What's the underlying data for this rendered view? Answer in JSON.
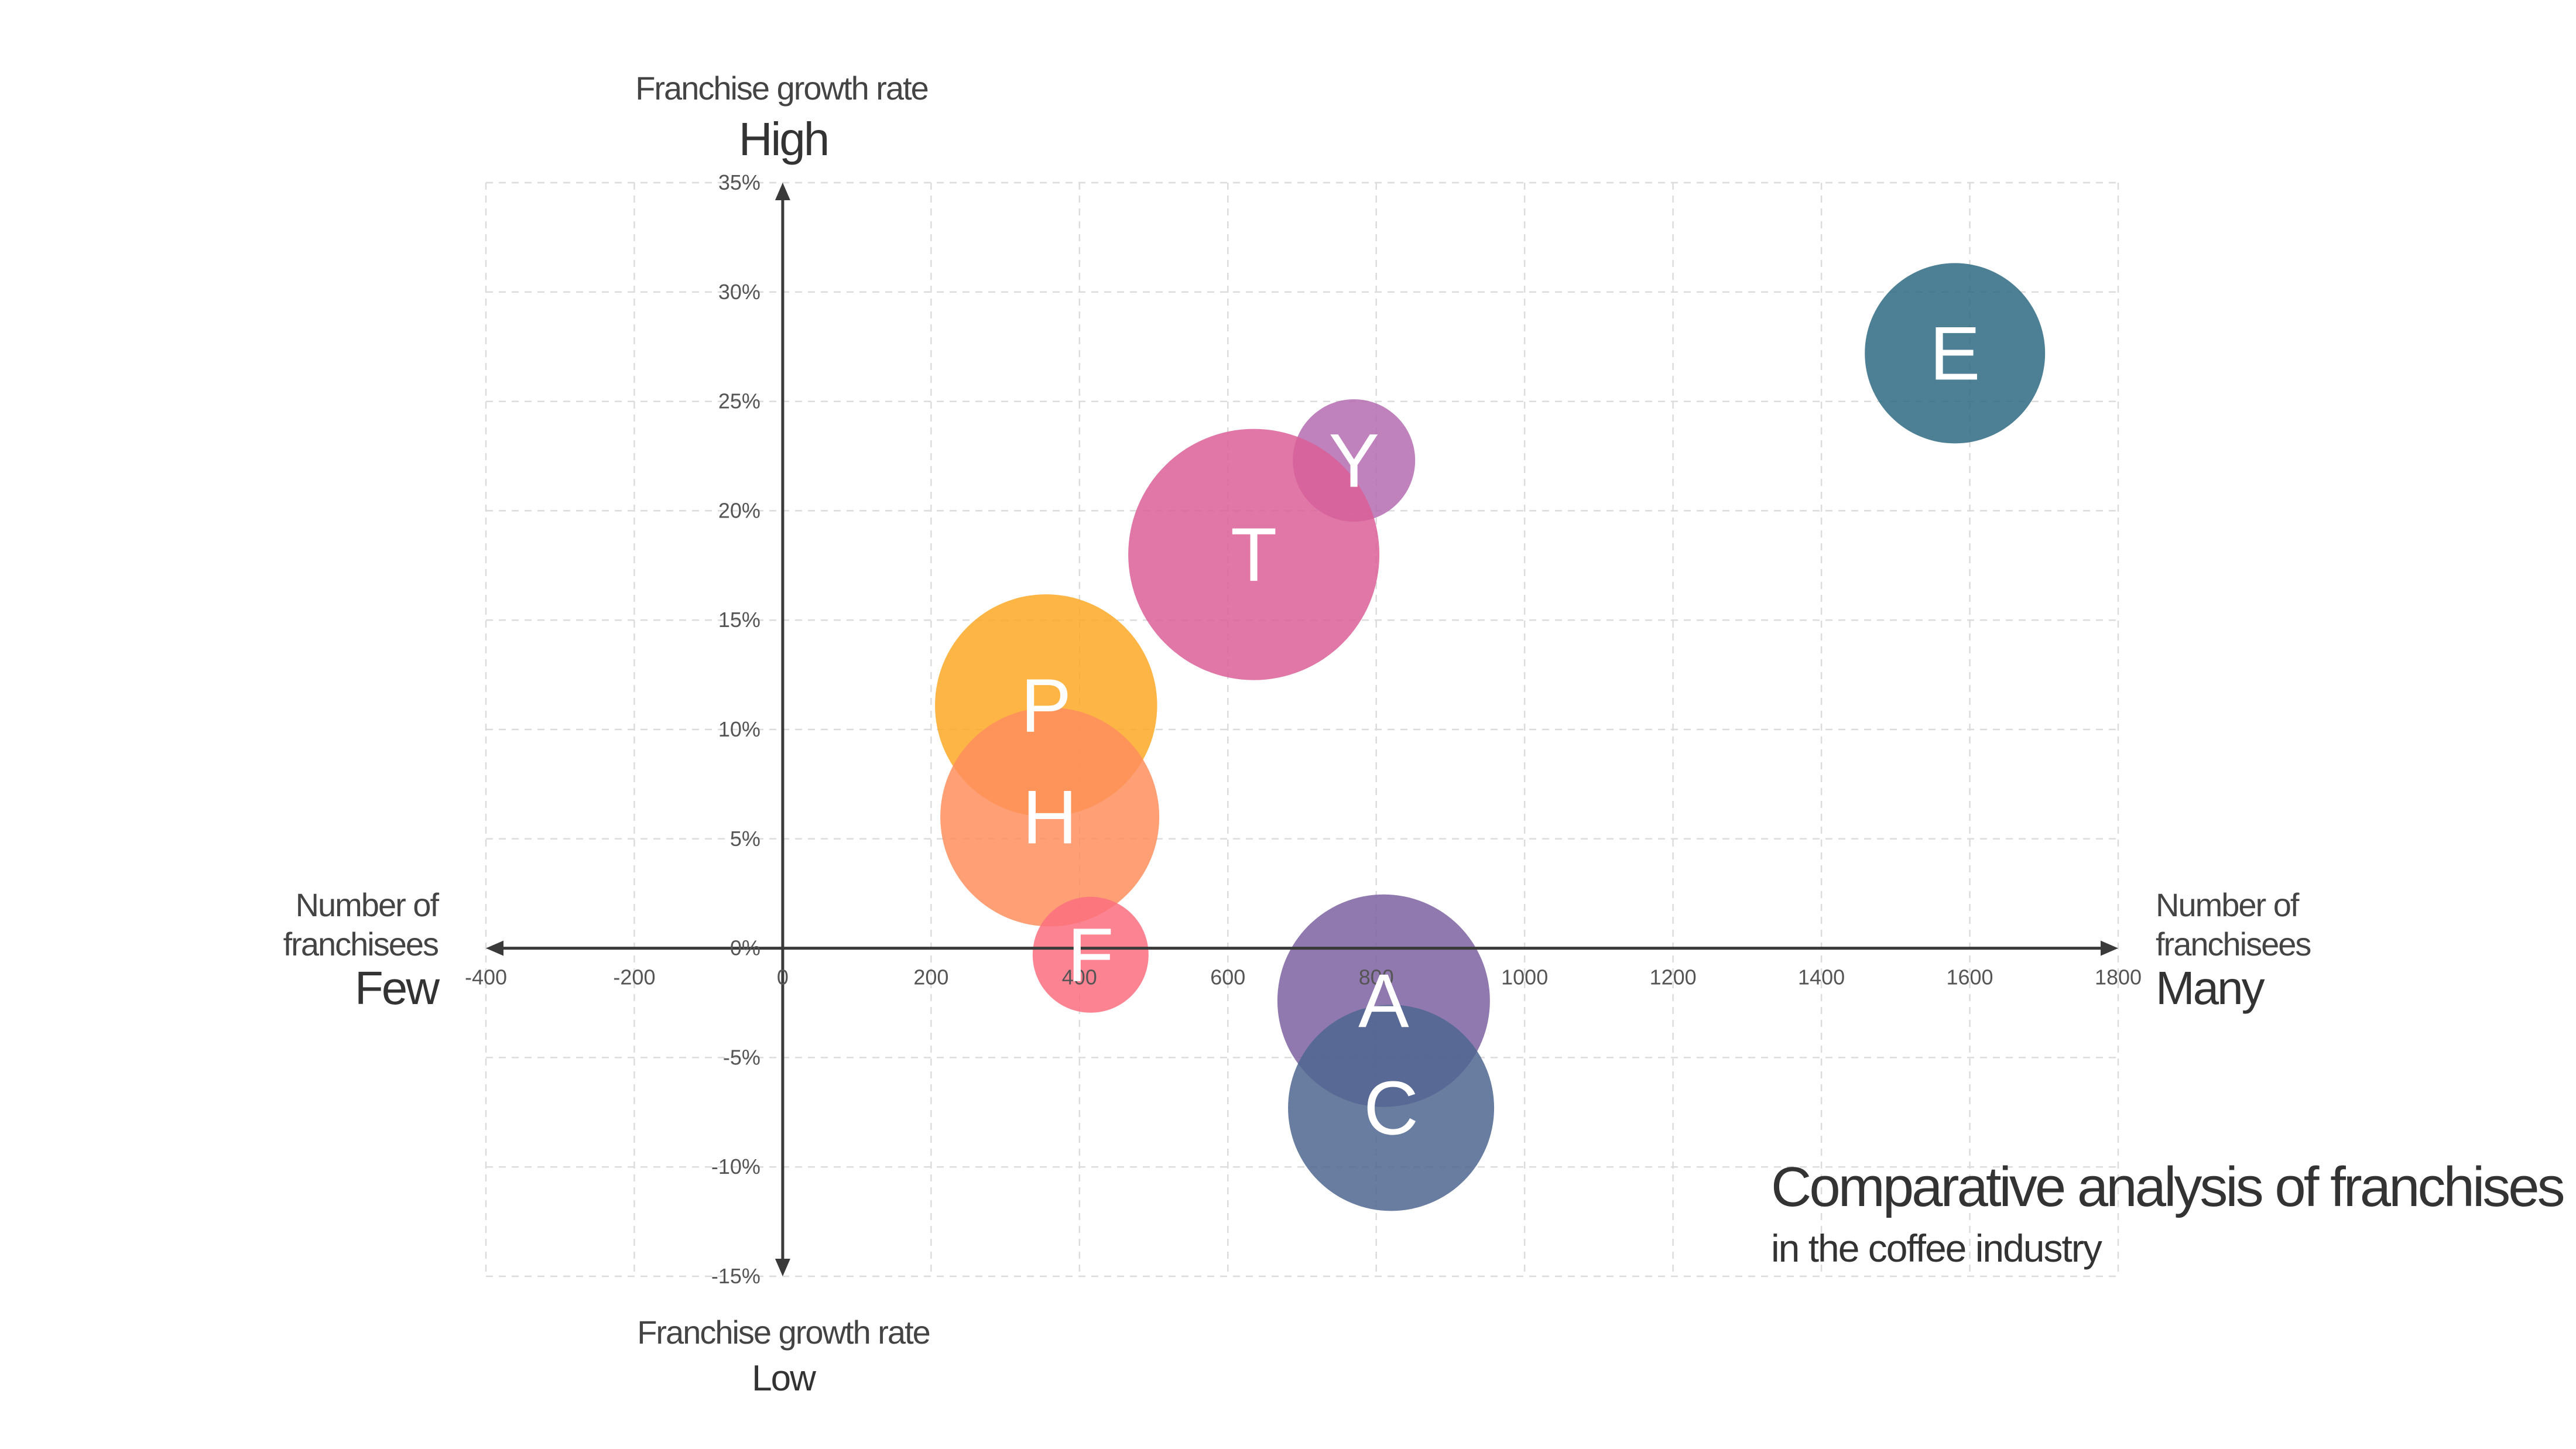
{
  "chart_data": {
    "type": "bubble",
    "title": "Comparative analysis of franchises",
    "subtitle": "in the coffee industry",
    "x_axis": {
      "label_low_lines": [
        "Number of",
        "franchisees"
      ],
      "label_low_word": "Few",
      "label_high_lines": [
        "Number of",
        "franchisees"
      ],
      "label_high_word": "Many",
      "range": [
        -400,
        1800
      ],
      "ticks": [
        -400,
        -200,
        0,
        200,
        400,
        600,
        800,
        1000,
        1200,
        1400,
        1600,
        1800
      ],
      "tick_labels": [
        "-400",
        "-200",
        "0",
        "200",
        "400",
        "600",
        "800",
        "1000",
        "1200",
        "1400",
        "1600",
        "1800"
      ]
    },
    "y_axis": {
      "label_top": "Franchise growth rate",
      "label_top_word": "High",
      "label_bottom": "Franchise growth rate",
      "label_bottom_word": "Low",
      "range": [
        -15,
        35
      ],
      "ticks": [
        35,
        30,
        25,
        20,
        15,
        10,
        5,
        0,
        -5,
        -10,
        -15
      ],
      "tick_labels": [
        "35%",
        "30%",
        "25%",
        "20%",
        "15%",
        "10%",
        "5%",
        "0%",
        "-5%",
        "-10%",
        "-15%"
      ]
    },
    "grid": true,
    "series": [
      {
        "name": "E",
        "x": 1580,
        "y": 27.2,
        "size": 2.8,
        "color": "#2e6a82"
      },
      {
        "name": "Y",
        "x": 770,
        "y": 22.3,
        "size": 1.9,
        "color": "#b46cb0"
      },
      {
        "name": "T",
        "x": 635,
        "y": 18.0,
        "size": 3.9,
        "color": "#da5f96"
      },
      {
        "name": "P",
        "x": 355,
        "y": 11.1,
        "size": 3.45,
        "color": "#fda826"
      },
      {
        "name": "H",
        "x": 360,
        "y": 6.0,
        "size": 3.4,
        "color": "#fe8e5d"
      },
      {
        "name": "F",
        "x": 415,
        "y": -0.3,
        "size": 1.8,
        "color": "#fc6e7f"
      },
      {
        "name": "A",
        "x": 810,
        "y": -2.4,
        "size": 3.3,
        "color": "#7d62a0"
      },
      {
        "name": "C",
        "x": 820,
        "y": -7.3,
        "size": 3.2,
        "color": "#4d668f"
      }
    ]
  }
}
